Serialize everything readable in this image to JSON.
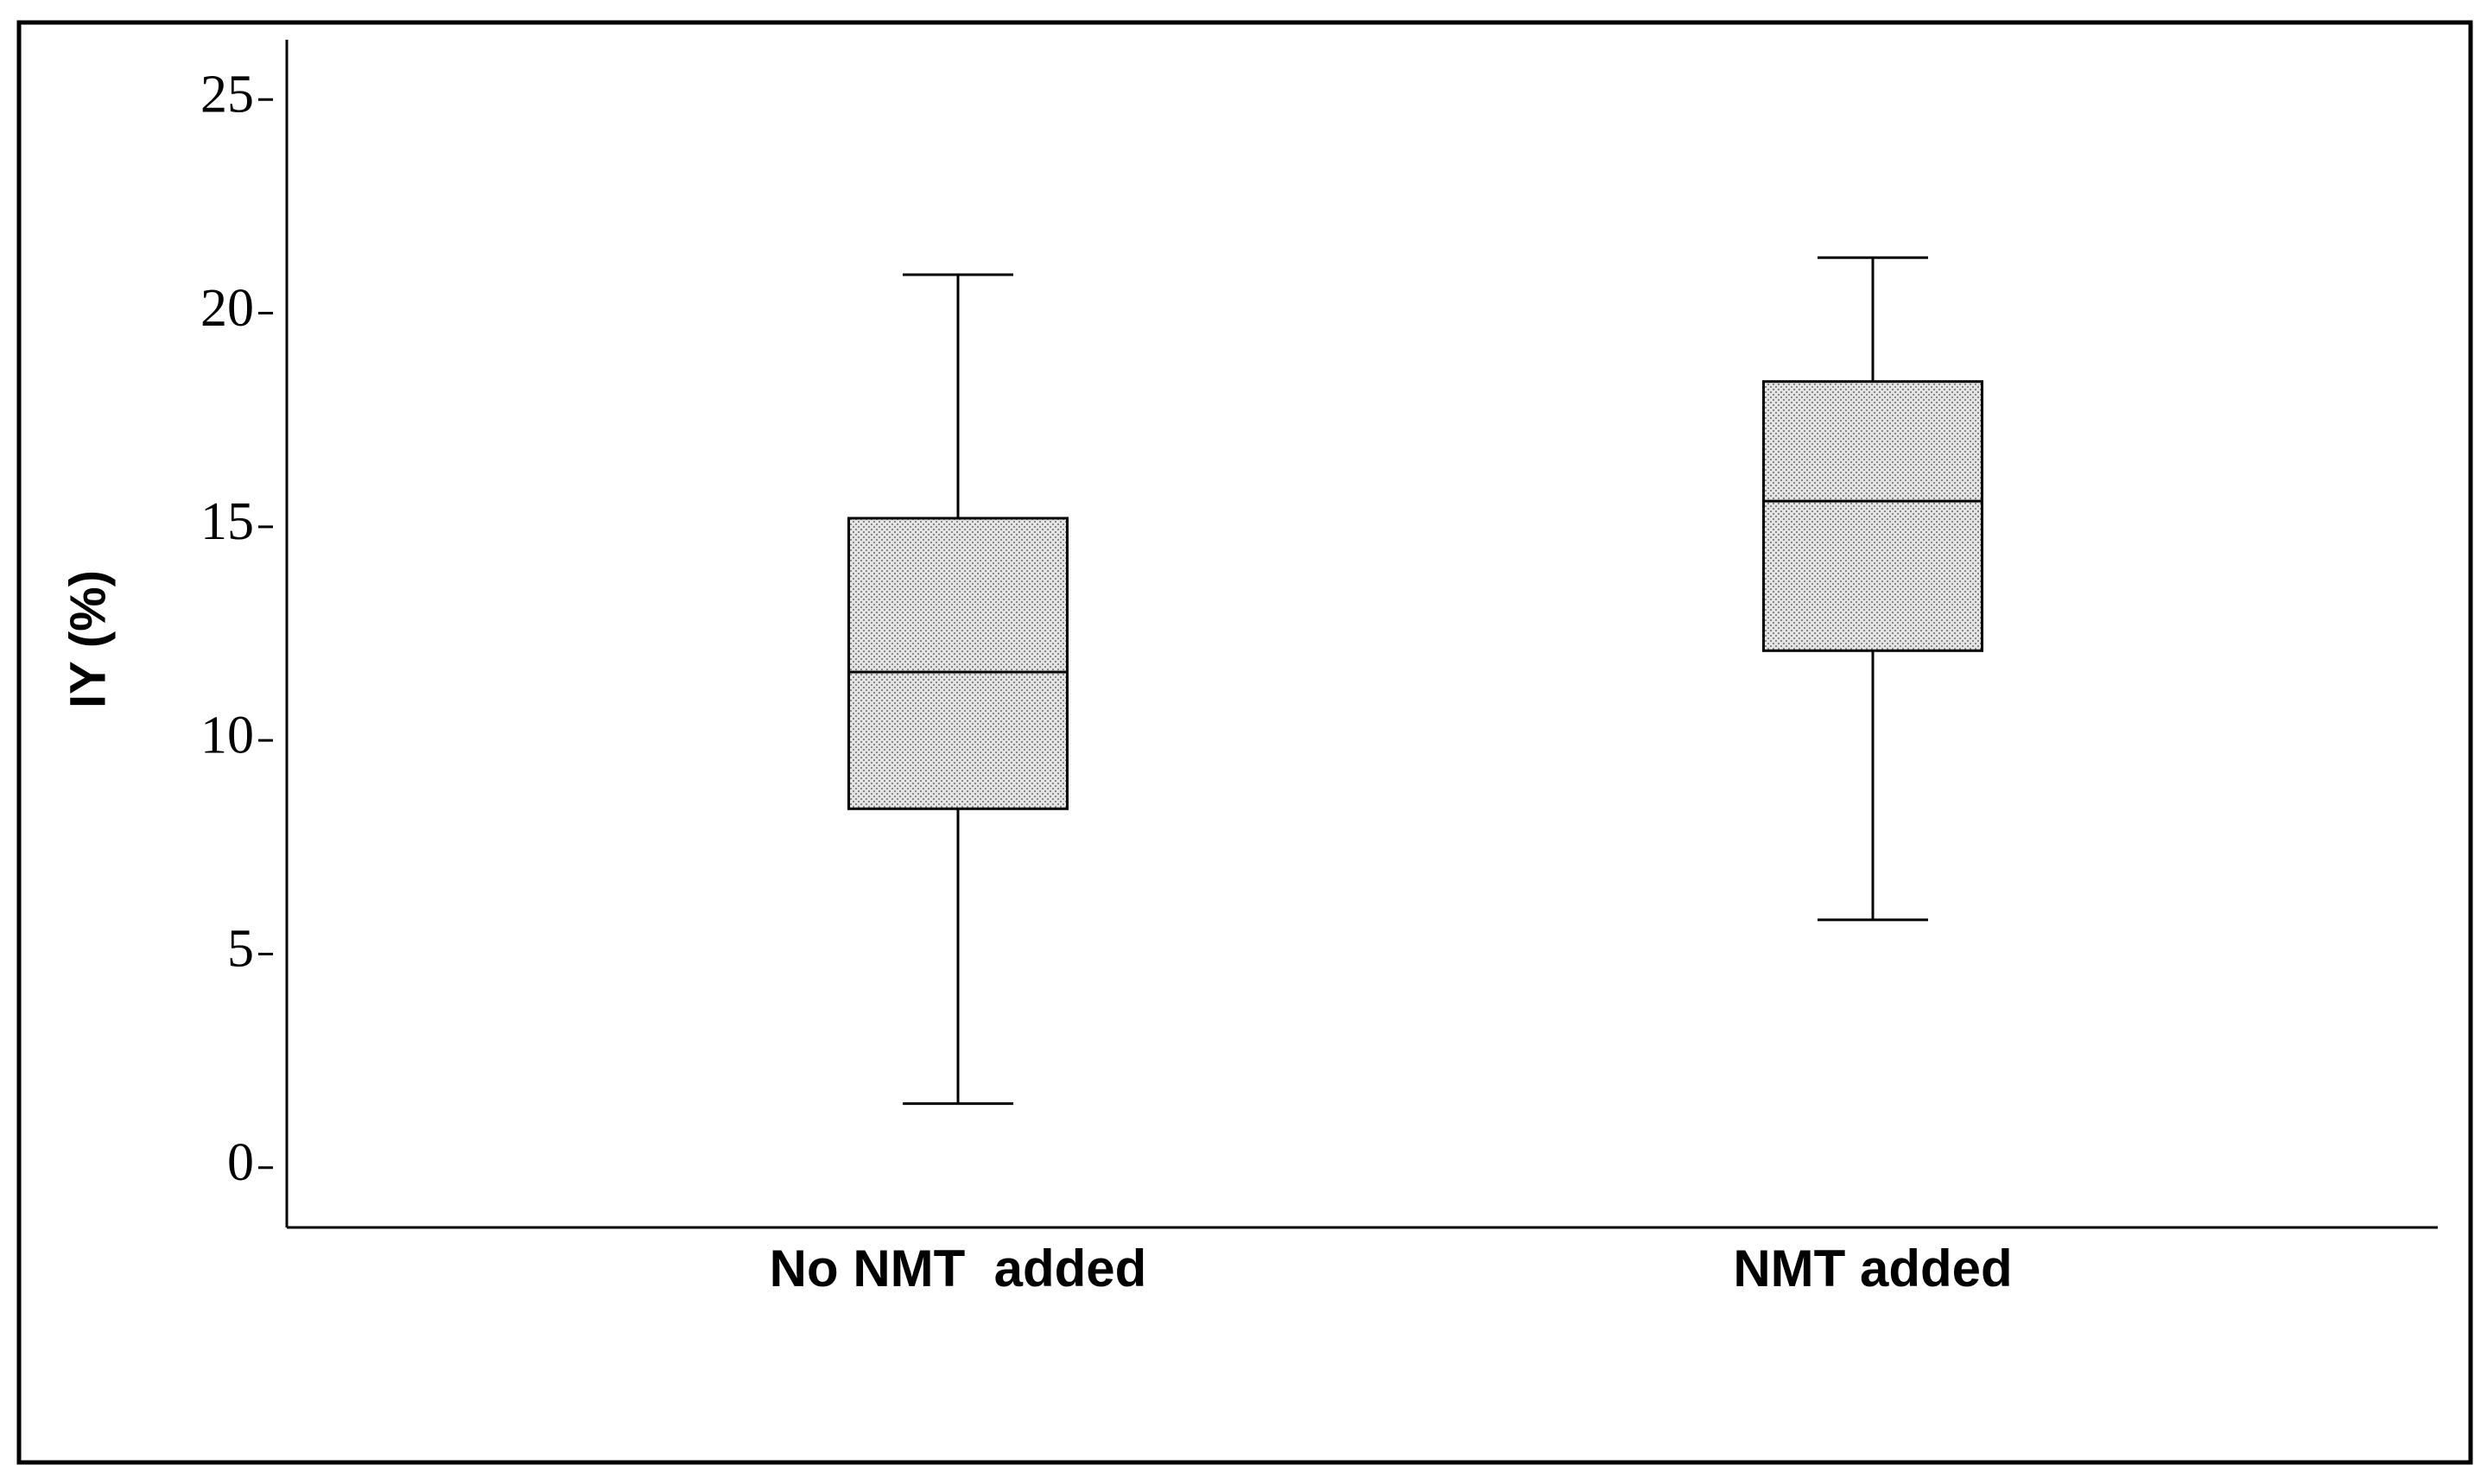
{
  "chart_data": {
    "type": "box",
    "ylabel": "IY (%)",
    "categories": [
      "No NMT  added",
      "NMT added"
    ],
    "boxes": [
      {
        "min": 1.5,
        "q1": 8.4,
        "median": 11.6,
        "q3": 15.2,
        "max": 20.9
      },
      {
        "min": 5.8,
        "q1": 12.1,
        "median": 15.6,
        "q3": 18.4,
        "max": 21.3
      }
    ],
    "ylim": [
      -1.4,
      26.4
    ],
    "yticks": [
      0,
      5,
      10,
      15,
      20,
      25
    ],
    "grid": false
  }
}
